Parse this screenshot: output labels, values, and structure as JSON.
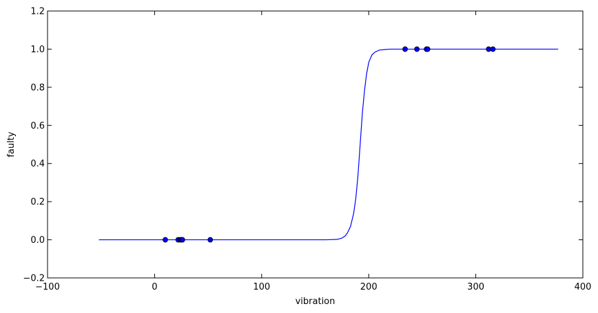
{
  "chart_data": {
    "type": "scatter",
    "title": "",
    "xlabel": "vibration",
    "ylabel": "faulty",
    "xlim": [
      -100,
      400
    ],
    "ylim": [
      -0.2,
      1.2
    ],
    "x_ticks": [
      -100,
      0,
      100,
      200,
      300,
      400
    ],
    "y_ticks": [
      -0.2,
      0.0,
      0.2,
      0.4,
      0.6,
      0.8,
      1.0,
      1.2
    ],
    "x_tick_labels": [
      "−100",
      "0",
      "100",
      "200",
      "300",
      "400"
    ],
    "y_tick_labels": [
      "−0.2",
      "0.0",
      "0.2",
      "0.4",
      "0.6",
      "0.8",
      "1.0",
      "1.2"
    ],
    "grid": false,
    "legend": "none",
    "colors": {
      "line": "#0000ff",
      "marker_fill": "#0000ff",
      "marker_edge": "#000000",
      "axes": "#000000"
    },
    "series": [
      {
        "type": "scatter",
        "x": [
          10,
          22,
          24,
          25,
          26,
          52,
          234,
          245,
          254,
          255,
          312,
          316
        ],
        "y": [
          0,
          0,
          0,
          0,
          0,
          0,
          1,
          1,
          1,
          1,
          1,
          1
        ]
      },
      {
        "type": "line",
        "x": [
          -52,
          160,
          165,
          170,
          172,
          175,
          178,
          180,
          183,
          186,
          188,
          190,
          192,
          194,
          196,
          198,
          200,
          203,
          206,
          210,
          215,
          220,
          230,
          250,
          300,
          377
        ],
        "y": [
          0,
          0,
          0.001,
          0.002,
          0.004,
          0.009,
          0.02,
          0.035,
          0.07,
          0.14,
          0.22,
          0.34,
          0.5,
          0.66,
          0.78,
          0.87,
          0.93,
          0.97,
          0.985,
          0.995,
          0.998,
          1.0,
          1.0,
          1.0,
          1.0,
          1.0
        ]
      }
    ]
  }
}
